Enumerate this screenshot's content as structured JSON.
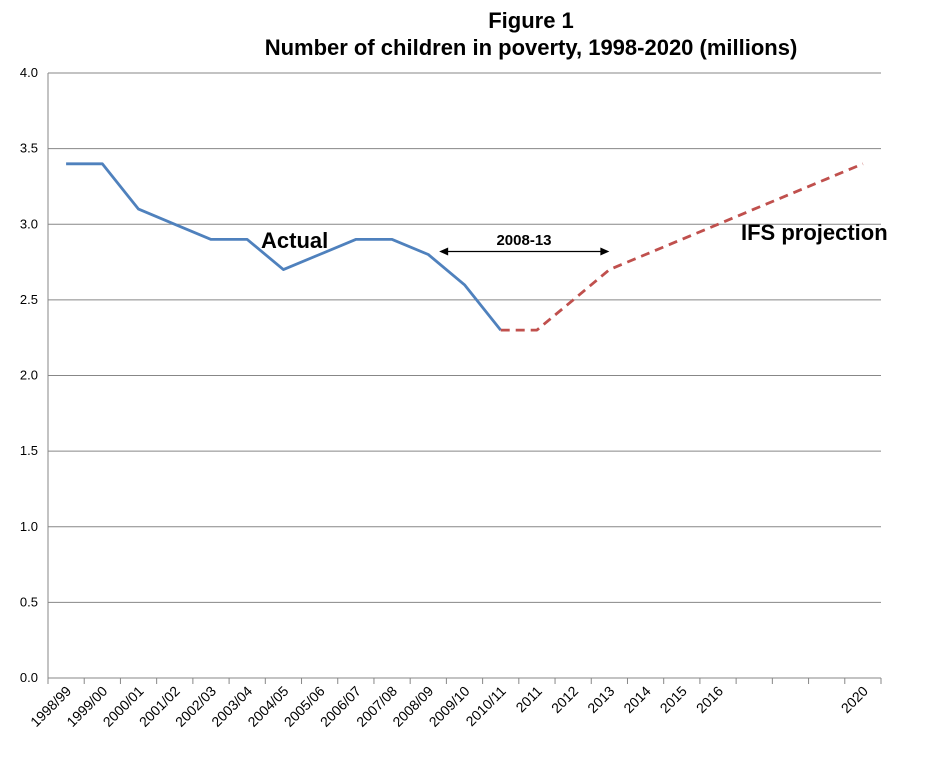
{
  "chart_data": {
    "type": "line",
    "title": "Figure 1",
    "subtitle": "Number of children in poverty, 1998-2020 (millions)",
    "xlabel": "",
    "ylabel": "",
    "ylim": [
      0,
      4
    ],
    "yticks": [
      "0.0",
      "0.5",
      "1.0",
      "1.5",
      "2.0",
      "2.5",
      "3.0",
      "3.5",
      "4.0"
    ],
    "grid": true,
    "legend": "none",
    "categories": [
      "1998/99",
      "1999/00",
      "2000/01",
      "2001/02",
      "2002/03",
      "2003/04",
      "2004/05",
      "2005/06",
      "2006/07",
      "2007/08",
      "2008/09",
      "2009/10",
      "2010/11",
      "2011",
      "2012",
      "2013",
      "2014",
      "2015",
      "2016",
      "",
      "",
      "",
      "2020"
    ],
    "series": [
      {
        "name": "Actual",
        "color": "#4F81BD",
        "style": "solid",
        "values": [
          3.4,
          3.4,
          3.1,
          3.0,
          2.9,
          2.9,
          2.7,
          2.8,
          2.9,
          2.9,
          2.8,
          2.6,
          2.3,
          null,
          null,
          null,
          null,
          null,
          null,
          null,
          null,
          null,
          null
        ]
      },
      {
        "name": "IFS projection",
        "color": "#C0504D",
        "style": "dashed",
        "values": [
          null,
          null,
          null,
          null,
          null,
          null,
          null,
          null,
          null,
          null,
          null,
          null,
          2.3,
          2.3,
          2.5,
          2.7,
          2.8,
          2.9,
          3.0,
          3.1,
          3.2,
          3.3,
          3.4
        ]
      }
    ],
    "annotations": {
      "actual_label": "Actual",
      "projection_label": "IFS projection",
      "period_label": "2008-13",
      "period_start_index": 10.3,
      "period_end_index": 15
    }
  }
}
